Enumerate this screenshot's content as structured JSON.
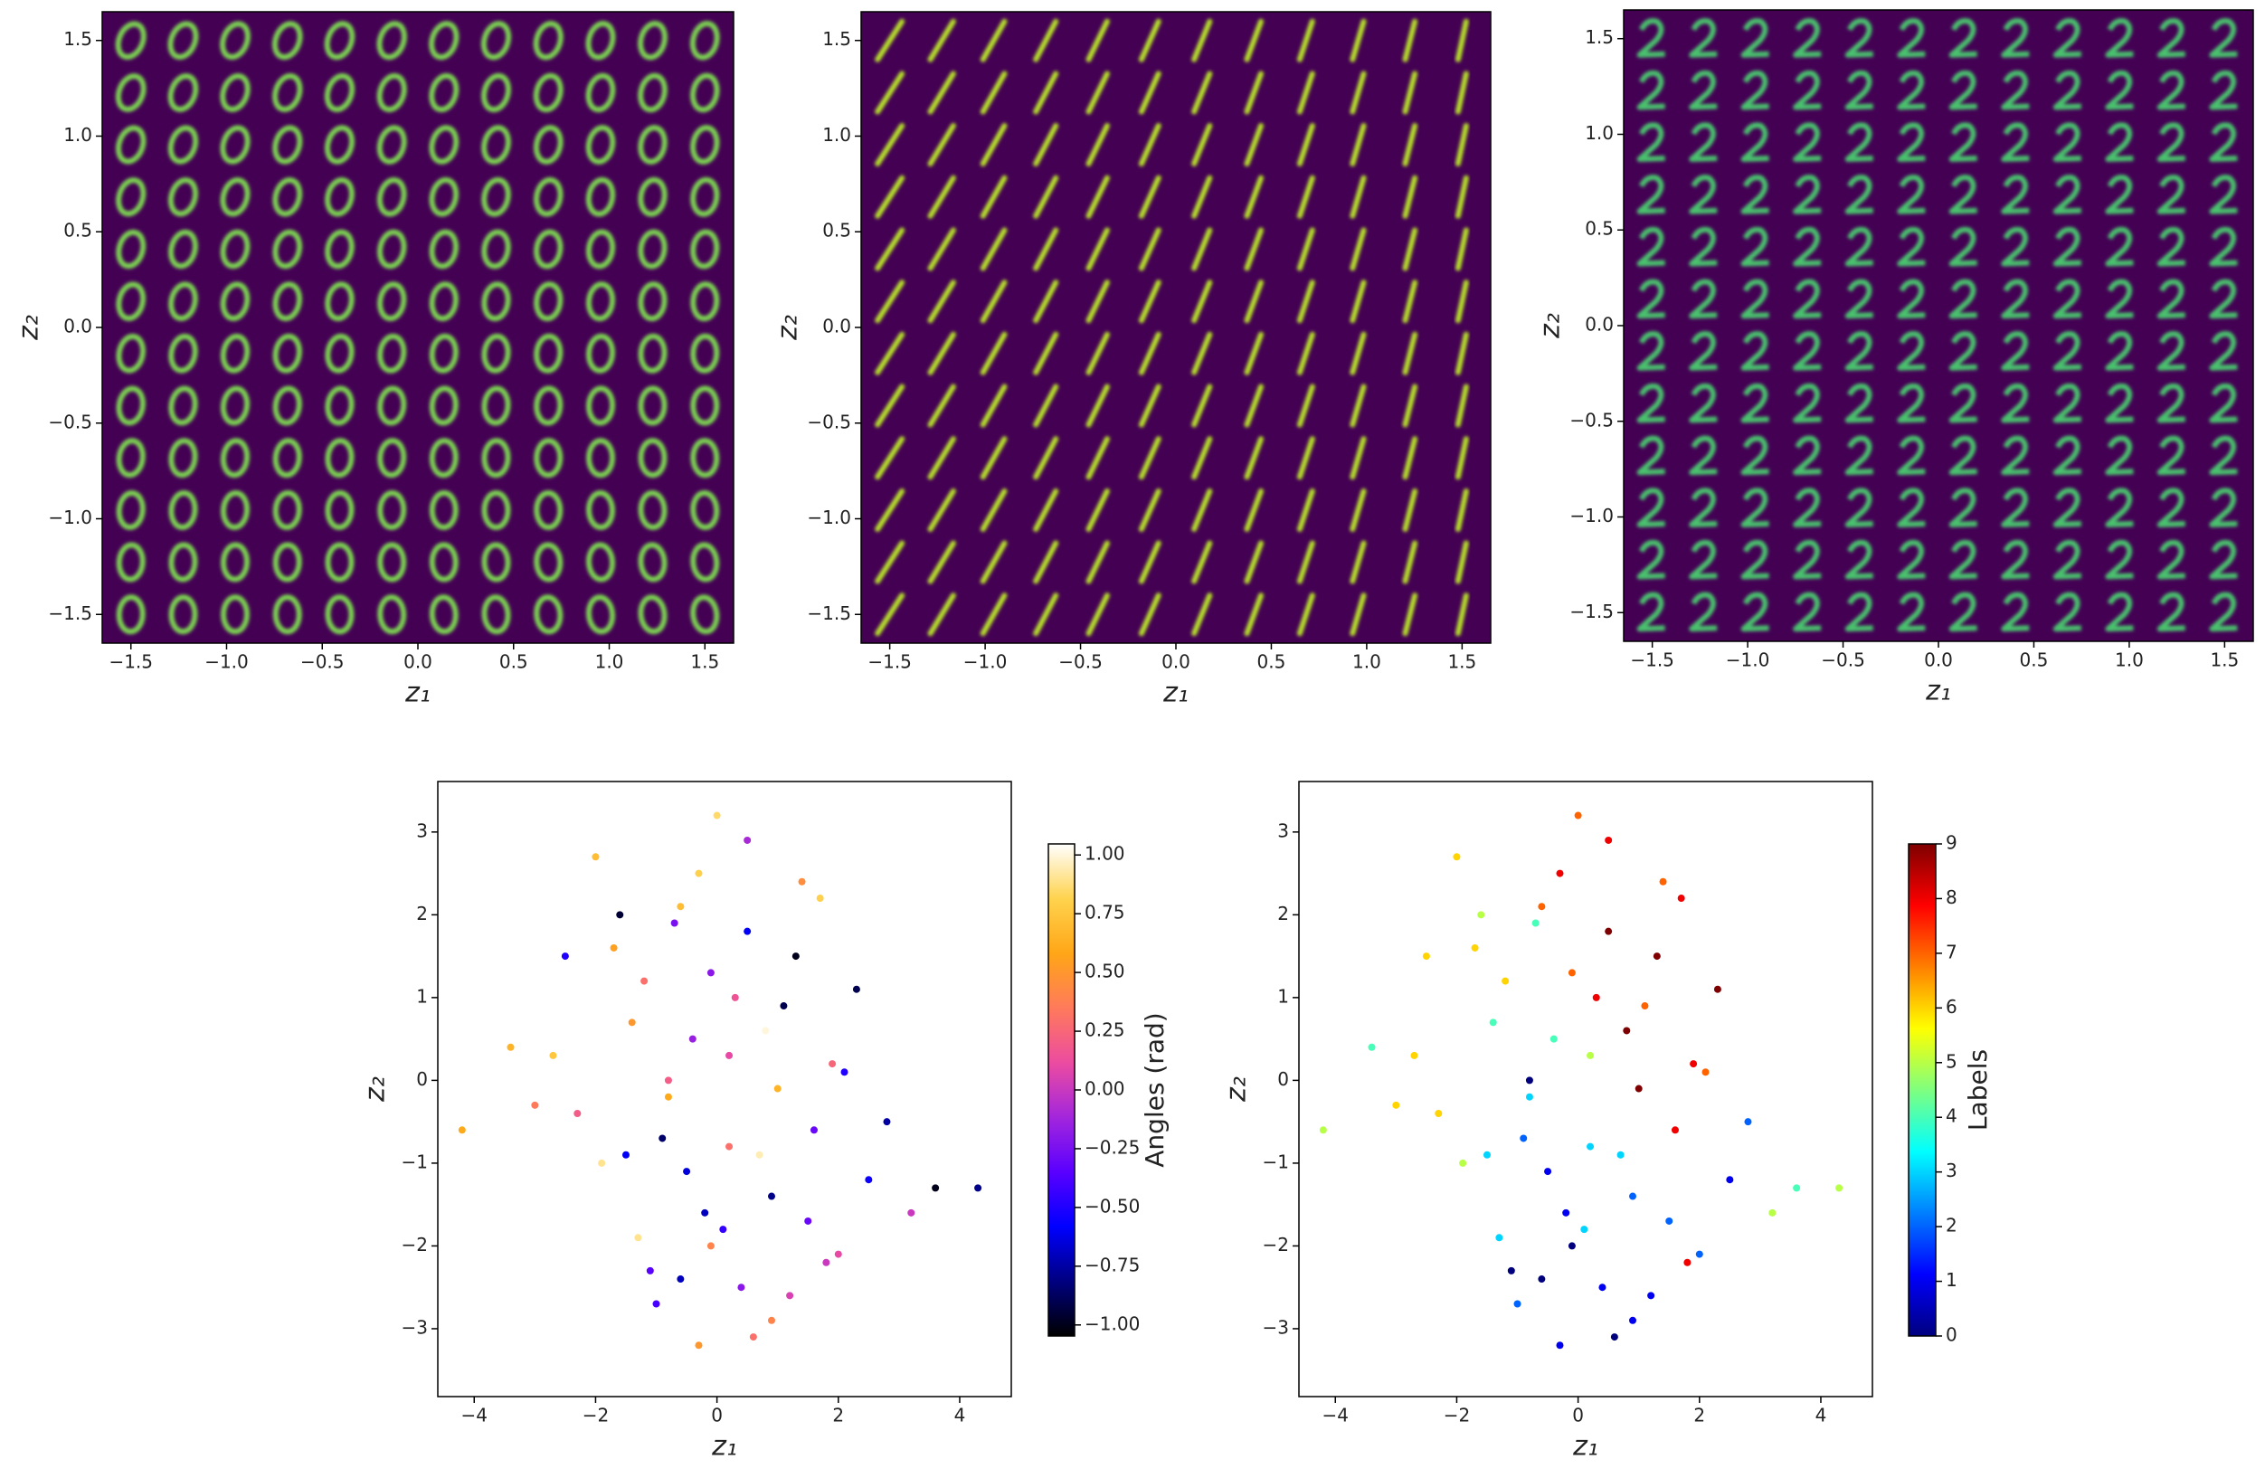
{
  "chart_data": [
    {
      "type": "image_grid",
      "xlabel": "z₁",
      "ylabel": "z₂",
      "background": "#440154",
      "color": "#7ad151",
      "x": [
        -1.5,
        -1.227,
        -0.955,
        -0.682,
        -0.409,
        -0.136,
        0.136,
        0.409,
        0.682,
        0.955,
        1.227,
        1.5
      ],
      "y": [
        -1.5,
        -1.227,
        -0.955,
        -0.682,
        -0.409,
        -0.136,
        0.136,
        0.409,
        0.682,
        0.955,
        1.227,
        1.5
      ],
      "xlim": [
        -1.65,
        1.65
      ],
      "ylim": [
        -1.65,
        1.65
      ],
      "xticks": [
        {
          "value": -1.5,
          "label": "−1.5"
        },
        {
          "value": -1.0,
          "label": "−1.0"
        },
        {
          "value": -0.5,
          "label": "−0.5"
        },
        {
          "value": 0,
          "label": "0.0"
        },
        0.5,
        {
          "value": 1,
          "label": "1.0"
        },
        1.5
      ],
      "yticks": [
        {
          "value": -1.5,
          "label": "−1.5"
        },
        {
          "value": -1.0,
          "label": "−1.0"
        },
        {
          "value": -0.5,
          "label": "−0.5"
        },
        {
          "value": 0,
          "label": "0.0"
        },
        0.5,
        {
          "value": 1,
          "label": "1.0"
        },
        1.5
      ]
    },
    {
      "type": "image_grid",
      "xlabel": "z₁",
      "ylabel": "z₂",
      "background": "#440154",
      "color": "#b5de2b",
      "x": [
        -1.5,
        -1.227,
        -0.955,
        -0.682,
        -0.409,
        -0.136,
        0.136,
        0.409,
        0.682,
        0.955,
        1.227,
        1.5
      ],
      "y": [
        -1.5,
        -1.227,
        -0.955,
        -0.682,
        -0.409,
        -0.136,
        0.136,
        0.409,
        0.682,
        0.955,
        1.227,
        1.5
      ],
      "xlim": [
        -1.65,
        1.65
      ],
      "ylim": [
        -1.65,
        1.65
      ],
      "xticks": [
        {
          "value": -1.5,
          "label": "−1.5"
        },
        {
          "value": -1.0,
          "label": "−1.0"
        },
        {
          "value": -0.5,
          "label": "−0.5"
        },
        {
          "value": 0,
          "label": "0.0"
        },
        0.5,
        {
          "value": 1,
          "label": "1.0"
        },
        1.5
      ],
      "yticks": [
        {
          "value": -1.5,
          "label": "−1.5"
        },
        {
          "value": -1.0,
          "label": "−1.0"
        },
        {
          "value": -0.5,
          "label": "−0.5"
        },
        {
          "value": 0,
          "label": "0.0"
        },
        0.5,
        {
          "value": 1,
          "label": "1.0"
        },
        1.5
      ]
    },
    {
      "type": "image_grid",
      "xlabel": "z₁",
      "ylabel": "z₂",
      "background": "#440154",
      "color": "#4ac16d",
      "x": [
        -1.5,
        -1.227,
        -0.955,
        -0.682,
        -0.409,
        -0.136,
        0.136,
        0.409,
        0.682,
        0.955,
        1.227,
        1.5
      ],
      "y": [
        -1.5,
        -1.227,
        -0.955,
        -0.682,
        -0.409,
        -0.136,
        0.136,
        0.409,
        0.682,
        0.955,
        1.227,
        1.5
      ],
      "xlim": [
        -1.65,
        1.65
      ],
      "ylim": [
        -1.65,
        1.65
      ],
      "xticks": [
        {
          "value": -1.5,
          "label": "−1.5"
        },
        {
          "value": -1.0,
          "label": "−1.0"
        },
        {
          "value": -0.5,
          "label": "−0.5"
        },
        {
          "value": 0,
          "label": "0.0"
        },
        0.5,
        {
          "value": 1,
          "label": "1.0"
        },
        1.5
      ],
      "yticks": [
        {
          "value": -1.5,
          "label": "−1.5"
        },
        {
          "value": -1.0,
          "label": "−1.0"
        },
        {
          "value": -0.5,
          "label": "−0.5"
        },
        {
          "value": 0,
          "label": "0.0"
        },
        0.5,
        {
          "value": 1,
          "label": "1.0"
        },
        1.5
      ]
    },
    {
      "type": "scatter",
      "xlabel": "z₁",
      "ylabel": "z₂",
      "colorbar_label": "Angles (rad)",
      "cmap": "gnuplot2",
      "cmap_colors": [
        "#000000",
        "#000080",
        "#0000ff",
        "#5a00ff",
        "#a326dc",
        "#ec4ca0",
        "#ff7a5b",
        "#ffa617",
        "#ffd34e",
        "#ffffff"
      ],
      "x": [
        -0.3,
        0.5,
        -1.2,
        1.1,
        0.2,
        -0.8,
        1.6,
        -1.9,
        0.9,
        -0.1,
        0.4,
        -0.6,
        1.3,
        -1.4,
        2.1,
        -2.3,
        0.7,
        -0.2,
        1.8,
        -1.0,
        0.0,
        0.6,
        -1.6,
        1.0,
        -0.4,
        2.5,
        -2.7,
        0.3,
        -0.9,
        1.4,
        -1.1,
        0.8,
        -0.5,
        1.9,
        -1.7,
        0.1,
        2.8,
        -3.0,
        1.2,
        -0.7,
        3.6,
        -4.2,
        0.5,
        -1.3,
        2.3,
        -0.3,
        1.5,
        -2.0,
        4.3,
        -0.8,
        0.9,
        -1.5,
        2.0,
        -0.1,
        1.7,
        -2.5,
        0.2,
        -0.6,
        3.2,
        -3.4
      ],
      "y": [
        2.5,
        1.8,
        1.2,
        0.9,
        0.3,
        -0.2,
        -0.6,
        -1.0,
        -1.4,
        -2.0,
        -2.5,
        2.1,
        1.5,
        0.7,
        0.1,
        -0.4,
        -0.9,
        -1.6,
        -2.2,
        -2.7,
        3.2,
        -3.1,
        2.0,
        -0.1,
        0.5,
        -1.2,
        0.3,
        1.0,
        -0.7,
        2.4,
        -2.3,
        0.6,
        -1.1,
        0.2,
        1.6,
        -1.8,
        -0.5,
        -0.3,
        -2.6,
        1.9,
        -1.3,
        -0.6,
        2.9,
        -1.9,
        1.1,
        -3.2,
        -1.7,
        2.7,
        -1.3,
        0.0,
        -2.9,
        -0.9,
        -2.1,
        1.3,
        2.2,
        1.5,
        -0.8,
        -2.4,
        -1.6,
        0.4
      ],
      "c": [
        0.8,
        -0.6,
        0.3,
        -0.9,
        0.1,
        0.6,
        -0.3,
        0.9,
        -0.8,
        0.4,
        -0.2,
        0.7,
        -1.0,
        0.5,
        -0.5,
        0.2,
        0.95,
        -0.7,
        0.0,
        -0.4,
        0.85,
        0.3,
        -0.95,
        0.65,
        -0.15,
        -0.55,
        0.75,
        0.15,
        -0.85,
        0.45,
        -0.35,
        1.0,
        -0.65,
        0.25,
        0.55,
        -0.45,
        -0.75,
        0.35,
        0.05,
        -0.25,
        -1.0,
        0.6,
        -0.1,
        0.9,
        -0.9,
        0.5,
        -0.3,
        0.7,
        -0.8,
        0.2,
        0.4,
        -0.6,
        0.1,
        -0.2,
        0.8,
        -0.5,
        0.3,
        -0.7,
        0.0,
        0.65
      ],
      "xlim": [
        -4.6,
        4.85
      ],
      "ylim": [
        -3.82,
        3.61
      ],
      "clim": [
        -1.047,
        1.047
      ],
      "xticks": [
        {
          "value": -4,
          "label": "−4"
        },
        {
          "value": -2,
          "label": "−2"
        },
        0,
        2,
        4
      ],
      "yticks": [
        {
          "value": -3,
          "label": "−3"
        },
        {
          "value": -2,
          "label": "−2"
        },
        {
          "value": -1,
          "label": "−1"
        },
        0,
        1,
        2,
        3
      ],
      "cticks": [
        {
          "value": -1,
          "label": "−1.00"
        },
        {
          "value": -0.75,
          "label": "−0.75"
        },
        {
          "value": -0.5,
          "label": "−0.50"
        },
        {
          "value": -0.25,
          "label": "−0.25"
        },
        {
          "value": 0,
          "label": "0.00"
        },
        0.25,
        {
          "value": 0.5,
          "label": "0.50"
        },
        0.75,
        {
          "value": 1,
          "label": "1.00"
        }
      ]
    },
    {
      "type": "scatter",
      "xlabel": "z₁",
      "ylabel": "z₂",
      "colorbar_label": "Labels",
      "cmap": "jet",
      "cmap_colors": [
        "#00007f",
        "#0000ff",
        "#007fff",
        "#00ffff",
        "#7fff7f",
        "#ffff00",
        "#ff7f00",
        "#ff0000",
        "#7f0000"
      ],
      "x": [
        -0.3,
        0.5,
        -1.2,
        1.1,
        0.2,
        -0.8,
        1.6,
        -1.9,
        0.9,
        -0.1,
        0.4,
        -0.6,
        1.3,
        -1.4,
        2.1,
        -2.3,
        0.7,
        -0.2,
        1.8,
        -1.0,
        0.0,
        0.6,
        -1.6,
        1.0,
        -0.4,
        2.5,
        -2.7,
        0.3,
        -0.9,
        1.4,
        -1.1,
        0.8,
        -0.5,
        1.9,
        -1.7,
        0.1,
        2.8,
        -3.0,
        1.2,
        -0.7,
        3.6,
        -4.2,
        0.5,
        -1.3,
        2.3,
        -0.3,
        1.5,
        -2.0,
        4.3,
        -0.8,
        0.9,
        -1.5,
        2.0,
        -0.1,
        1.7,
        -2.5,
        0.2,
        -0.6,
        3.2,
        -3.4
      ],
      "y": [
        2.5,
        1.8,
        1.2,
        0.9,
        0.3,
        -0.2,
        -0.6,
        -1.0,
        -1.4,
        -2.0,
        -2.5,
        2.1,
        1.5,
        0.7,
        0.1,
        -0.4,
        -0.9,
        -1.6,
        -2.2,
        -2.7,
        3.2,
        -3.1,
        2.0,
        -0.1,
        0.5,
        -1.2,
        0.3,
        1.0,
        -0.7,
        2.4,
        -2.3,
        0.6,
        -1.1,
        0.2,
        1.6,
        -1.8,
        -0.5,
        -0.3,
        -2.6,
        1.9,
        -1.3,
        -0.6,
        2.9,
        -1.9,
        1.1,
        -3.2,
        -1.7,
        2.7,
        -1.3,
        0.0,
        -2.9,
        -0.9,
        -2.1,
        1.3,
        2.2,
        1.5,
        -0.8,
        -2.4,
        -1.6,
        0.4
      ],
      "c": [
        8,
        9,
        6,
        7,
        5,
        3,
        8,
        5,
        2,
        0,
        1,
        7,
        9,
        4,
        7,
        6,
        3,
        1,
        8,
        2,
        7,
        0,
        5,
        9,
        4,
        1,
        6,
        8,
        2,
        7,
        0,
        9,
        1,
        8,
        6,
        3,
        2,
        6,
        1,
        4,
        4,
        5,
        8,
        3,
        9,
        1,
        2,
        6,
        5,
        0,
        1,
        3,
        2,
        7,
        8,
        6,
        3,
        0,
        5,
        4
      ],
      "xlim": [
        -4.6,
        4.85
      ],
      "ylim": [
        -3.82,
        3.61
      ],
      "clim": [
        0,
        9
      ],
      "xticks": [
        {
          "value": -4,
          "label": "−4"
        },
        {
          "value": -2,
          "label": "−2"
        },
        0,
        2,
        4
      ],
      "yticks": [
        {
          "value": -3,
          "label": "−3"
        },
        {
          "value": -2,
          "label": "−2"
        },
        {
          "value": -1,
          "label": "−1"
        },
        0,
        1,
        2,
        3
      ],
      "cticks": [
        0,
        1,
        2,
        3,
        4,
        5,
        6,
        7,
        8,
        9
      ]
    }
  ]
}
